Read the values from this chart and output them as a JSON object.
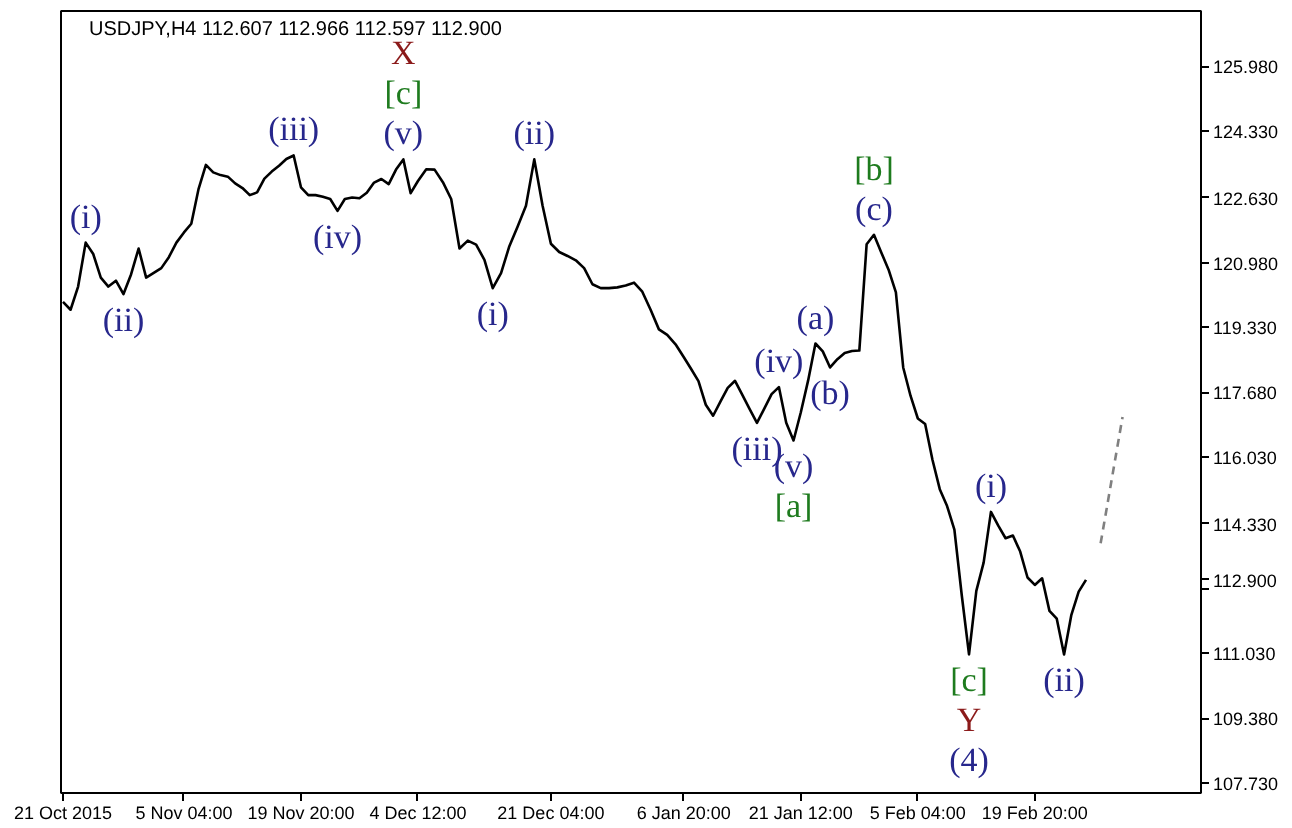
{
  "chart_data": {
    "type": "line",
    "title": "USDJPY,H4  112.607 112.966 112.597 112.900",
    "xlim": [
      "2015-10-20T18:00",
      "2016-03-11T16:00"
    ],
    "xticks": [
      {
        "value": "2015-10-21T00:00",
        "label": "21 Oct 2015"
      },
      {
        "value": "2015-11-05T04:00",
        "label": "5 Nov 04:00"
      },
      {
        "value": "2015-11-19T20:00",
        "label": "19 Nov 20:00"
      },
      {
        "value": "2015-12-04T12:00",
        "label": "4 Dec 12:00"
      },
      {
        "value": "2015-12-21T04:00",
        "label": "21 Dec 04:00"
      },
      {
        "value": "2016-01-06T20:00",
        "label": "6 Jan 20:00"
      },
      {
        "value": "2016-01-21T12:00",
        "label": "21 Jan 12:00"
      },
      {
        "value": "2016-02-05T04:00",
        "label": "5 Feb 04:00"
      },
      {
        "value": "2016-02-19T20:00",
        "label": "19 Feb 20:00"
      }
    ],
    "ylim": [
      107.47,
      127.39
    ],
    "yticks": [
      {
        "value": 107.73,
        "label": "107.730"
      },
      {
        "value": 109.38,
        "label": "109.380"
      },
      {
        "value": 111.03,
        "label": "111.030"
      },
      {
        "value": 112.68,
        "label": null
      },
      {
        "value": 112.9,
        "label": "112.900"
      },
      {
        "value": 114.33,
        "label": "114.330"
      },
      {
        "value": 116.03,
        "label": "116.030"
      },
      {
        "value": 117.68,
        "label": "117.680"
      },
      {
        "value": 119.33,
        "label": "119.330"
      },
      {
        "value": 120.98,
        "label": "120.980"
      },
      {
        "value": 122.63,
        "label": "122.630"
      },
      {
        "value": 124.33,
        "label": "124.330"
      },
      {
        "value": 125.98,
        "label": "125.980"
      }
    ],
    "grid": false,
    "series": [
      {
        "color": "#000000",
        "line_style": "solid",
        "x": [
          "2015-10-21T00:00",
          "2015-10-21T22:45",
          "2015-10-22T21:30",
          "2015-10-23T20:15",
          "2015-10-24T19:00",
          "2015-10-25T17:45",
          "2015-10-26T16:30",
          "2015-10-27T15:15",
          "2015-10-28T14:00",
          "2015-10-29T12:45",
          "2015-10-30T11:30",
          "2015-10-31T10:15",
          "2015-11-01T09:00",
          "2015-11-02T07:45",
          "2015-11-03T06:30",
          "2015-11-04T05:15",
          "2015-11-05T04:00",
          "2015-11-06T02:00",
          "2015-11-07T00:00",
          "2015-11-07T22:00",
          "2015-11-08T20:00",
          "2015-11-09T18:00",
          "2015-11-10T16:00",
          "2015-11-11T14:00",
          "2015-11-12T12:00",
          "2015-11-13T10:00",
          "2015-11-14T08:00",
          "2015-11-15T06:00",
          "2015-11-16T04:00",
          "2015-11-17T02:00",
          "2015-11-18T00:00",
          "2015-11-18T22:00",
          "2015-11-19T20:00",
          "2015-11-20T18:00",
          "2015-11-21T16:00",
          "2015-11-22T14:00",
          "2015-11-23T12:00",
          "2015-11-24T10:00",
          "2015-11-25T08:00",
          "2015-11-26T06:00",
          "2015-11-27T04:00",
          "2015-11-28T02:00",
          "2015-11-29T00:00",
          "2015-11-29T22:00",
          "2015-11-30T20:00",
          "2015-12-01T18:00",
          "2015-12-02T16:00",
          "2015-12-03T14:00",
          "2015-12-04T12:00",
          "2015-12-05T13:00",
          "2015-12-06T14:00",
          "2015-12-07T15:00",
          "2015-12-08T16:00",
          "2015-12-09T17:00",
          "2015-12-10T18:00",
          "2015-12-11T19:00",
          "2015-12-12T20:00",
          "2015-12-13T21:00",
          "2015-12-14T22:00",
          "2015-12-15T23:00",
          "2015-12-17T00:00",
          "2015-12-18T01:00",
          "2015-12-19T02:00",
          "2015-12-20T03:00",
          "2015-12-21T04:00",
          "2015-12-22T05:00",
          "2015-12-23T06:00",
          "2015-12-24T07:00",
          "2015-12-25T08:00",
          "2015-12-26T09:00",
          "2015-12-27T10:00",
          "2015-12-28T11:00",
          "2015-12-29T12:00",
          "2015-12-30T13:00",
          "2015-12-31T14:00",
          "2016-01-01T15:00",
          "2016-01-02T16:00",
          "2016-01-03T17:00",
          "2016-01-04T18:00",
          "2016-01-05T19:00",
          "2016-01-06T20:00",
          "2016-01-07T18:00",
          "2016-01-08T16:00",
          "2016-01-09T14:00",
          "2016-01-10T12:00",
          "2016-01-11T10:00",
          "2016-01-12T08:00",
          "2016-01-13T06:00",
          "2016-01-14T04:00",
          "2016-01-15T02:00",
          "2016-01-16T00:00",
          "2016-01-16T22:00",
          "2016-01-17T20:00",
          "2016-01-18T18:00",
          "2016-01-19T16:00",
          "2016-01-20T14:00",
          "2016-01-21T12:00",
          "2016-01-22T10:00",
          "2016-01-23T08:00",
          "2016-01-24T06:00",
          "2016-01-25T04:00",
          "2016-01-26T02:00",
          "2016-01-27T00:00",
          "2016-01-27T22:00",
          "2016-01-28T20:00",
          "2016-01-29T18:00",
          "2016-01-30T16:00",
          "2016-01-31T14:00",
          "2016-02-01T12:00",
          "2016-02-02T10:00",
          "2016-02-03T08:00",
          "2016-02-04T06:00",
          "2016-02-05T04:00",
          "2016-02-06T02:00",
          "2016-02-07T00:00",
          "2016-02-07T22:00",
          "2016-02-08T20:00",
          "2016-02-09T18:00",
          "2016-02-10T16:00",
          "2016-02-11T14:00",
          "2016-02-12T12:00",
          "2016-02-13T10:00",
          "2016-02-14T08:00",
          "2016-02-15T06:00",
          "2016-02-16T04:00",
          "2016-02-17T02:00",
          "2016-02-18T00:00",
          "2016-02-18T22:00",
          "2016-02-19T20:00",
          "2016-02-20T18:00",
          "2016-02-21T16:00",
          "2016-02-22T14:00",
          "2016-02-23T12:00",
          "2016-02-24T10:00",
          "2016-02-25T08:00",
          "2016-02-26T06:00"
        ],
        "values": [
          119.98,
          119.78,
          120.37,
          121.49,
          121.2,
          120.6,
          120.37,
          120.52,
          120.18,
          120.68,
          121.34,
          120.6,
          120.72,
          120.84,
          121.12,
          121.49,
          121.75,
          121.97,
          122.86,
          123.47,
          123.28,
          123.21,
          123.17,
          123.0,
          122.88,
          122.7,
          122.77,
          123.12,
          123.3,
          123.45,
          123.62,
          123.71,
          122.9,
          122.7,
          122.7,
          122.66,
          122.6,
          122.3,
          122.6,
          122.64,
          122.62,
          122.76,
          123.02,
          123.11,
          122.98,
          123.35,
          123.61,
          122.75,
          123.06,
          123.36,
          123.35,
          123.03,
          122.6,
          121.34,
          121.54,
          121.44,
          121.05,
          120.33,
          120.71,
          121.4,
          121.9,
          122.43,
          123.61,
          122.43,
          121.46,
          121.25,
          121.15,
          121.04,
          120.84,
          120.43,
          120.33,
          120.33,
          120.35,
          120.4,
          120.47,
          120.24,
          119.78,
          119.28,
          119.14,
          118.9,
          118.57,
          118.27,
          117.96,
          117.36,
          117.08,
          117.44,
          117.79,
          117.97,
          117.61,
          117.25,
          116.9,
          117.26,
          117.63,
          117.81,
          116.9,
          116.45,
          117.17,
          117.98,
          118.92,
          118.72,
          118.31,
          118.52,
          118.68,
          118.73,
          118.74,
          121.45,
          121.69,
          121.24,
          120.8,
          120.22,
          118.31,
          117.59,
          117.01,
          116.87,
          115.96,
          115.21,
          114.78,
          114.18,
          112.52,
          111.0,
          112.62,
          113.34,
          114.63,
          114.28,
          113.96,
          114.03,
          113.62,
          112.96,
          112.77,
          112.94,
          112.11,
          111.91,
          111.0,
          112.01,
          112.6,
          112.9
        ]
      },
      {
        "color": "#808080",
        "line_style": "dashed",
        "x": [
          "2016-02-28T02:00",
          "2016-02-29T00:00",
          "2016-02-29T22:00",
          "2016-03-01T20:00"
        ],
        "values": [
          113.83,
          114.9,
          115.98,
          117.05
        ]
      }
    ],
    "annotations": [
      {
        "text": "(i)",
        "x": "2015-10-23T20:15",
        "y": 121.49
      },
      {
        "text": "(ii)",
        "x": "2015-10-28T14:00",
        "y": 120.18
      },
      {
        "text": "(iii)",
        "x": "2015-11-18T22:00",
        "y": 123.71
      },
      {
        "text": "(iv)",
        "x": "2015-11-24T10:00",
        "y": 122.3
      },
      {
        "text": "(v)",
        "x": "2015-12-02T16:00",
        "y": 123.61
      },
      {
        "text": "[c]",
        "x": "2015-12-02T16:00",
        "y": 123.61
      },
      {
        "text": "X",
        "x": "2015-12-02T16:00",
        "y": 123.61
      },
      {
        "text": "(i)",
        "x": "2015-12-13T21:00",
        "y": 120.33
      },
      {
        "text": "(ii)",
        "x": "2015-12-19T02:00",
        "y": 123.61
      },
      {
        "text": "(iii)",
        "x": "2016-01-16T00:00",
        "y": 116.9
      },
      {
        "text": "(iv)",
        "x": "2016-01-18T18:00",
        "y": 117.81
      },
      {
        "text": "(v)",
        "x": "2016-01-20T14:00",
        "y": 116.45
      },
      {
        "text": "[a]",
        "x": "2016-01-20T14:00",
        "y": 116.45
      },
      {
        "text": "(a)",
        "x": "2016-01-23T08:00",
        "y": 118.92
      },
      {
        "text": "(b)",
        "x": "2016-01-25T04:00",
        "y": 118.31
      },
      {
        "text": "(c)",
        "x": "2016-01-30T16:00",
        "y": 121.69
      },
      {
        "text": "[b]",
        "x": "2016-01-30T16:00",
        "y": 121.69
      },
      {
        "text": "[c]",
        "x": "2016-02-11T14:00",
        "y": 111.0
      },
      {
        "text": "Y",
        "x": "2016-02-11T14:00",
        "y": 111.0
      },
      {
        "text": "(4)",
        "x": "2016-02-11T14:00",
        "y": 111.0
      },
      {
        "text": "(i)",
        "x": "2016-02-14T08:00",
        "y": 114.63
      },
      {
        "text": "(ii)",
        "x": "2016-02-23T12:00",
        "y": 111.0
      }
    ]
  }
}
